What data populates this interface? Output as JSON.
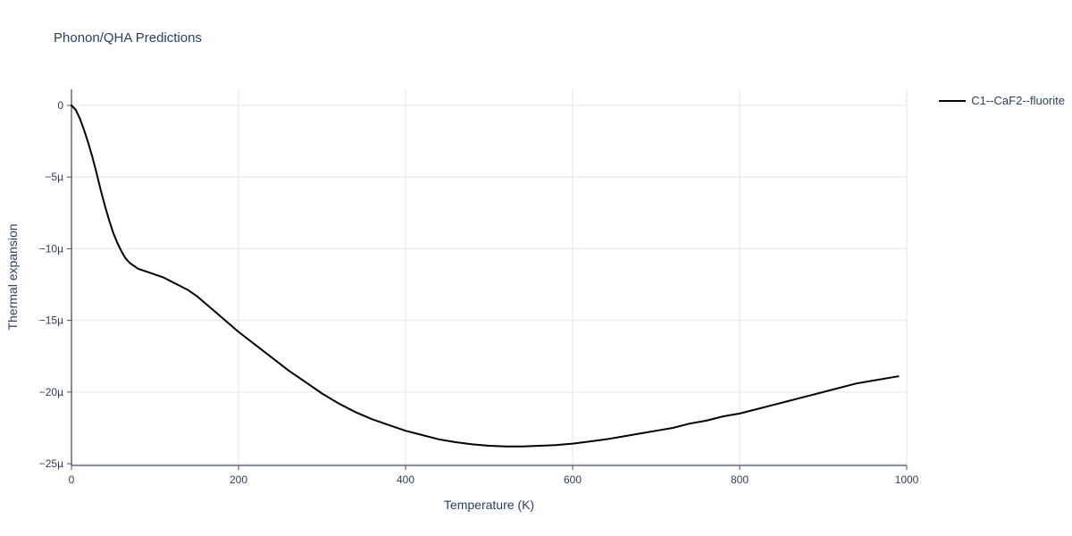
{
  "chart_data": {
    "type": "line",
    "title": "Phonon/QHA Predictions",
    "xlabel": "Temperature (K)",
    "ylabel": "Thermal expansion",
    "xlim": [
      0,
      1000
    ],
    "ylim_mu": [
      1.12,
      -25.12
    ],
    "x_ticks": [
      0,
      200,
      400,
      600,
      800,
      1000
    ],
    "x_tick_labels": [
      "0",
      "200",
      "400",
      "600",
      "800",
      "1000"
    ],
    "y_ticks": [
      0,
      -5,
      -10,
      -15,
      -20,
      -25
    ],
    "y_tick_labels": [
      "0",
      "−5µ",
      "−10µ",
      "−15µ",
      "−20µ",
      "−25µ"
    ],
    "grid": true,
    "legend_position": "top-right",
    "series": [
      {
        "name": "C1--CaF2--fluorite",
        "color": "#000000",
        "x": [
          0,
          5,
          10,
          15,
          20,
          25,
          30,
          35,
          40,
          45,
          50,
          55,
          60,
          65,
          70,
          80,
          90,
          100,
          110,
          120,
          130,
          140,
          150,
          160,
          170,
          180,
          190,
          200,
          220,
          240,
          260,
          280,
          300,
          320,
          340,
          360,
          380,
          400,
          420,
          440,
          460,
          480,
          500,
          520,
          540,
          560,
          580,
          600,
          620,
          640,
          660,
          680,
          700,
          720,
          740,
          760,
          780,
          800,
          820,
          840,
          860,
          880,
          900,
          920,
          940,
          960,
          980,
          990
        ],
        "y_mu": [
          0,
          -0.3,
          -0.9,
          -1.7,
          -2.6,
          -3.6,
          -4.7,
          -5.9,
          -7.0,
          -8.0,
          -8.9,
          -9.6,
          -10.2,
          -10.7,
          -11.0,
          -11.4,
          -11.6,
          -11.8,
          -12.0,
          -12.3,
          -12.6,
          -12.9,
          -13.3,
          -13.8,
          -14.3,
          -14.8,
          -15.3,
          -15.8,
          -16.7,
          -17.6,
          -18.5,
          -19.3,
          -20.1,
          -20.8,
          -21.4,
          -21.9,
          -22.3,
          -22.7,
          -23.0,
          -23.3,
          -23.5,
          -23.65,
          -23.75,
          -23.8,
          -23.8,
          -23.75,
          -23.7,
          -23.6,
          -23.45,
          -23.3,
          -23.1,
          -22.9,
          -22.7,
          -22.5,
          -22.2,
          -22.0,
          -21.7,
          -21.5,
          -21.2,
          -20.9,
          -20.6,
          -20.3,
          -20.0,
          -19.7,
          -19.4,
          -19.2,
          -19.0,
          -18.9
        ]
      }
    ]
  },
  "colors": {
    "title": "#2a3f5f",
    "axis_text": "#2a3f5f",
    "grid": "#e4e4e4",
    "axis_line": "#46525f",
    "background": "#ffffff"
  }
}
